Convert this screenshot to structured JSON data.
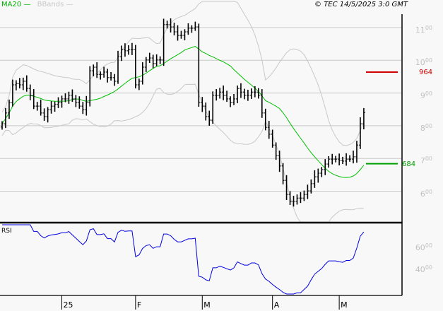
{
  "header": {
    "ma_label": "MA20",
    "bbands_label": "BBands",
    "copyright": "© TEC 14/5/2025 3:0 GMT"
  },
  "colors": {
    "bars": "#000000",
    "ma": "#00c000",
    "bbands": "#c8c8c8",
    "rsi": "#0000e0",
    "resistance": "#d00000",
    "support": "#00a000",
    "grid": "#c8c8c8"
  },
  "chart_data": {
    "type": "ohlc-bar",
    "title": "TEC",
    "ylim": [
      540,
      1150
    ],
    "y_ticks": [
      {
        "value": 1100,
        "major": "11",
        "minor": "00"
      },
      {
        "value": 1000,
        "major": "10",
        "minor": "00"
      },
      {
        "value": 900,
        "major": "9",
        "minor": "00"
      },
      {
        "value": 800,
        "major": "8",
        "minor": "00"
      },
      {
        "value": 700,
        "major": "7",
        "minor": "00"
      },
      {
        "value": 600,
        "major": "6",
        "minor": "00"
      }
    ],
    "x_ticks": [
      {
        "index": 17,
        "label": "25"
      },
      {
        "index": 38,
        "label": "F"
      },
      {
        "index": 57,
        "label": "M"
      },
      {
        "index": 77,
        "label": "A"
      },
      {
        "index": 96,
        "label": "M"
      }
    ],
    "closes": [
      806,
      839,
      871,
      925,
      929,
      925,
      936,
      914,
      893,
      860,
      860,
      839,
      828,
      849,
      860,
      865,
      871,
      882,
      882,
      893,
      882,
      871,
      860,
      849,
      871,
      968,
      979,
      957,
      957,
      964,
      947,
      947,
      936,
      1011,
      1033,
      1029,
      1033,
      1033,
      925,
      936,
      979,
      1001,
      1007,
      990,
      1001,
      1001,
      1109,
      1109,
      1102,
      1087,
      1076,
      1076,
      1087,
      1098,
      1098,
      1102,
      871,
      860,
      828,
      817,
      893,
      893,
      903,
      893,
      882,
      871,
      882,
      914,
      903,
      893,
      893,
      903,
      903,
      893,
      839,
      795,
      774,
      741,
      709,
      677,
      633,
      590,
      569,
      569,
      579,
      579,
      590,
      601,
      623,
      644,
      655,
      666,
      683,
      698,
      698,
      698,
      694,
      692,
      698,
      698,
      705,
      741,
      806,
      840
    ],
    "ma_period": 20,
    "levels": [
      {
        "name": "resistance",
        "value": 964,
        "label": "964"
      },
      {
        "name": "support",
        "value": 684,
        "label": "684"
      }
    ],
    "rsi": {
      "title": "RSI",
      "period": 14,
      "ylim": [
        0,
        100
      ],
      "y_ticks": [
        {
          "value": 60,
          "major": "60",
          "minor": "00"
        },
        {
          "value": 40,
          "major": "40",
          "minor": "00"
        }
      ]
    }
  }
}
